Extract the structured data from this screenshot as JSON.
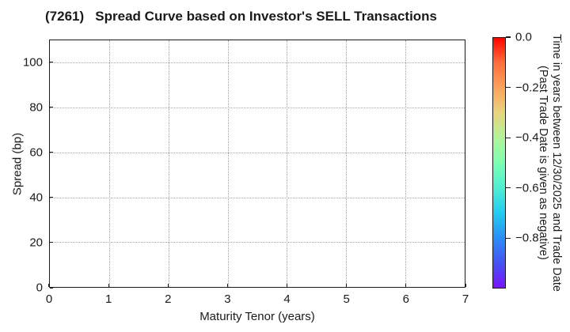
{
  "title": "(7261)   Spread Curve based on Investor's SELL Transactions",
  "chart_data": {
    "type": "scatter",
    "title": "(7261)   Spread Curve based on Investor's SELL Transactions",
    "xlabel": "Maturity Tenor (years)",
    "ylabel": "Spread (bp)",
    "xlim": [
      0,
      7
    ],
    "ylim": [
      0,
      110
    ],
    "xticks": [
      0,
      1,
      2,
      3,
      4,
      5,
      6,
      7
    ],
    "yticks": [
      0,
      20,
      40,
      60,
      80,
      100
    ],
    "grid": true,
    "grid_style": "dotted",
    "points": [],
    "colorbar": {
      "title_lines": [
        "Time in years between 12/30/2025 and Trade Date",
        "(Past Trade Date is given as negative)"
      ],
      "tick_labels": [
        "0.0",
        "−0.2",
        "−0.4",
        "−0.6",
        "−0.8"
      ],
      "tick_values": [
        0.0,
        -0.2,
        -0.4,
        -0.6,
        -0.8
      ],
      "vmax": 0.0,
      "vmin": -1.0,
      "colormap": "rainbow",
      "gradient_top_to_bottom": [
        "#ff0400",
        "#ff6e3c",
        "#fba35c",
        "#e8d47f",
        "#b2f49a",
        "#7dffb2",
        "#4fefd2",
        "#22ccf0",
        "#2b8df7",
        "#4653f2",
        "#7b12ff"
      ]
    },
    "colors": {
      "axis": "#1a1a1a",
      "grid": "#a6a6a6",
      "text": "#1a1a1a",
      "background": "#ffffff"
    }
  }
}
